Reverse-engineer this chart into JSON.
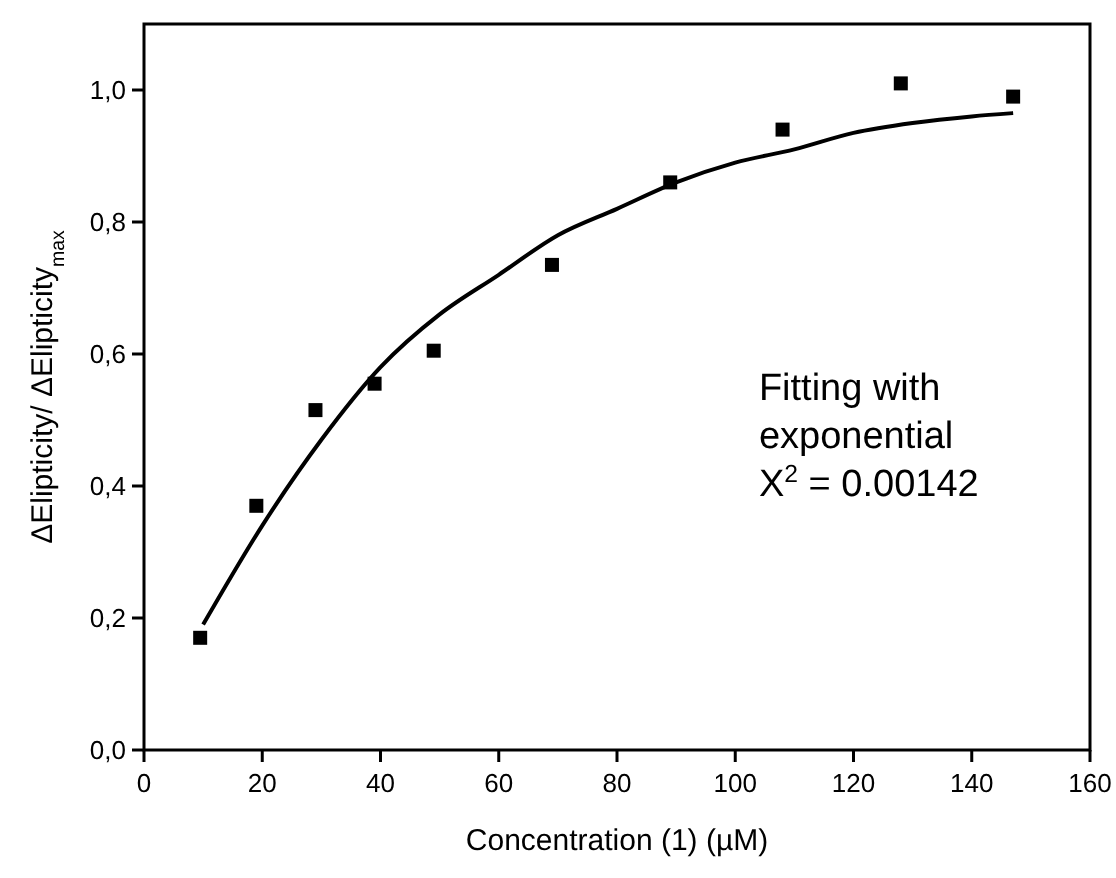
{
  "chart_data": {
    "type": "scatter",
    "xlabel": "Concentration (1) (µM)",
    "ylabel": "ΔElipticity/  ΔElipticity$_{max}$",
    "xlim": [
      0,
      160
    ],
    "xticks": [
      0,
      20,
      40,
      60,
      80,
      100,
      120,
      140,
      160
    ],
    "ylim": [
      0,
      1.1
    ],
    "yticks": [
      {
        "value": 0,
        "label": "0,0"
      },
      {
        "value": 0.2,
        "label": "0,2"
      },
      {
        "value": 0.4,
        "label": "0,4"
      },
      {
        "value": 0.6,
        "label": "0,6"
      },
      {
        "value": 0.8,
        "label": "0,8"
      },
      {
        "value": 1,
        "label": "1,0"
      }
    ],
    "grid": false,
    "series": [
      {
        "color": "#000000",
        "marker": "square",
        "x": [
          9.5,
          19,
          29,
          39,
          49,
          69,
          89,
          108,
          128,
          147
        ],
        "values": [
          0.17,
          0.37,
          0.515,
          0.555,
          0.605,
          0.735,
          0.86,
          0.94,
          1.01,
          0.99
        ]
      },
      {
        "type": "line",
        "color": "#000000",
        "marker": "none",
        "line_style": "solid",
        "x": [
          10,
          20,
          30,
          40,
          50,
          60,
          70,
          80,
          90,
          100,
          110,
          120,
          130,
          140,
          147
        ],
        "values": [
          0.19,
          0.34,
          0.47,
          0.58,
          0.66,
          0.72,
          0.78,
          0.82,
          0.86,
          0.89,
          0.91,
          0.935,
          0.95,
          0.96,
          0.965
        ]
      }
    ],
    "annotations": [
      "Fitting with",
      "exponential",
      "X$^{2}$ = 0.00142"
    ]
  }
}
